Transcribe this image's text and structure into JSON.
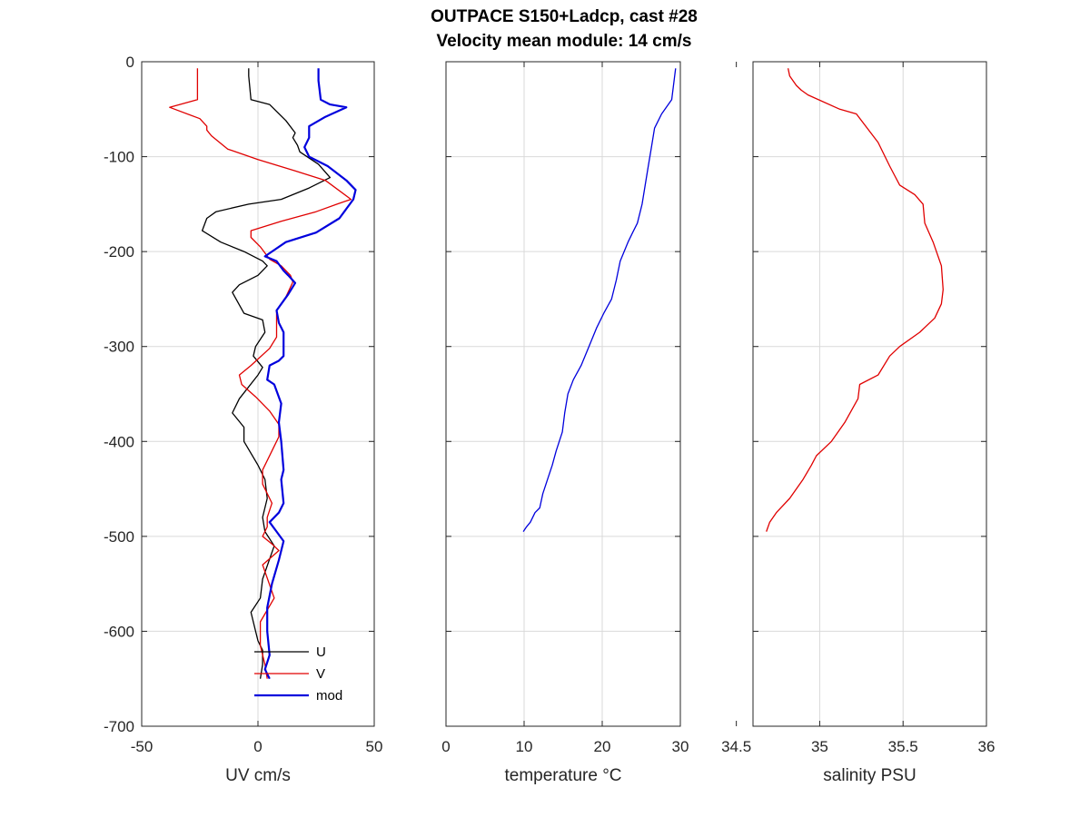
{
  "title": "OUTPACE S150+Ladcp, cast #28",
  "subtitle": "Velocity mean module:  14 cm/s",
  "colors": {
    "U": "#000000",
    "V": "#e00000",
    "mod": "#0000dd",
    "temperature": "#0000dd",
    "salinity": "#e00000",
    "grid": "#d9d9d9",
    "axis": "#262626"
  },
  "chart_data": [
    {
      "type": "line",
      "xlabel": "UV cm/s",
      "ylabel": "",
      "xlim": [
        -50,
        50
      ],
      "ylim": [
        -700,
        0
      ],
      "xticks": [
        -50,
        0,
        50
      ],
      "yticks": [
        0,
        -100,
        -200,
        -300,
        -400,
        -500,
        -600,
        -700
      ],
      "grid": true,
      "legend": "bottom-right",
      "series": [
        {
          "name": "U",
          "color": "#000000",
          "x": [
            -4,
            -4,
            -3,
            5,
            12,
            16,
            15,
            17,
            18,
            26,
            31,
            22,
            10,
            -4,
            -18,
            -22,
            -24,
            -16,
            -6,
            2,
            4,
            0,
            -8,
            -11,
            -6,
            2,
            3,
            -1,
            -2,
            2,
            0,
            -8,
            -11,
            -6,
            -6,
            0,
            3,
            4,
            2,
            3,
            7,
            2,
            1,
            -3,
            -1,
            0,
            2,
            2,
            1
          ],
          "y": [
            -7,
            -15,
            -40,
            -45,
            -62,
            -75,
            -80,
            -88,
            -95,
            -108,
            -122,
            -133,
            -145,
            -150,
            -158,
            -165,
            -178,
            -190,
            -200,
            -210,
            -215,
            -225,
            -235,
            -243,
            -265,
            -272,
            -285,
            -300,
            -310,
            -322,
            -330,
            -355,
            -370,
            -385,
            -400,
            -425,
            -440,
            -460,
            -480,
            -495,
            -510,
            -545,
            -565,
            -580,
            -600,
            -610,
            -620,
            -635,
            -650
          ]
        },
        {
          "name": "V",
          "color": "#e00000",
          "x": [
            -26,
            -26,
            -26,
            -38,
            -25,
            -22,
            -22,
            -20,
            -13,
            0,
            16,
            29,
            40,
            34,
            25,
            10,
            -3,
            -3,
            1,
            5,
            10,
            14,
            15,
            12,
            8,
            8,
            5,
            -3,
            -8,
            -7,
            -1,
            5,
            9,
            9,
            6,
            2,
            2,
            5,
            6,
            4,
            4,
            2,
            6,
            9,
            2,
            7,
            1,
            1,
            3,
            4
          ],
          "y": [
            -7,
            -20,
            -40,
            -48,
            -60,
            -68,
            -72,
            -78,
            -92,
            -103,
            -115,
            -125,
            -145,
            -150,
            -158,
            -168,
            -178,
            -185,
            -195,
            -208,
            -215,
            -225,
            -232,
            -248,
            -262,
            -290,
            -302,
            -320,
            -330,
            -340,
            -353,
            -368,
            -382,
            -395,
            -410,
            -430,
            -445,
            -460,
            -465,
            -480,
            -490,
            -500,
            -508,
            -515,
            -530,
            -565,
            -590,
            -615,
            -635,
            -650
          ]
        },
        {
          "name": "mod",
          "color": "#0000dd",
          "x": [
            26,
            26,
            27,
            31,
            38,
            29,
            22,
            22,
            20,
            22,
            30,
            38,
            42,
            41,
            35,
            25,
            12,
            6,
            3,
            8,
            11,
            13,
            16,
            13,
            8,
            9,
            11,
            11,
            11,
            9,
            5,
            4,
            7,
            10,
            9,
            10,
            11,
            10,
            11,
            9,
            5,
            8,
            11,
            9,
            6,
            4,
            4,
            5,
            3,
            5
          ],
          "y": [
            -7,
            -20,
            -40,
            -45,
            -48,
            -58,
            -68,
            -80,
            -90,
            -100,
            -110,
            -125,
            -135,
            -145,
            -165,
            -180,
            -190,
            -200,
            -205,
            -210,
            -220,
            -225,
            -233,
            -245,
            -262,
            -275,
            -285,
            -300,
            -310,
            -315,
            -320,
            -335,
            -340,
            -360,
            -380,
            -400,
            -430,
            -440,
            -465,
            -475,
            -485,
            -495,
            -505,
            -525,
            -550,
            -575,
            -600,
            -625,
            -640,
            -650
          ]
        }
      ],
      "legend_entries": [
        "U",
        "V",
        "mod"
      ]
    },
    {
      "type": "line",
      "xlabel": "temperature °C",
      "ylabel": "",
      "xlim": [
        0,
        30
      ],
      "ylim": [
        -700,
        0
      ],
      "xticks": [
        0,
        10,
        20,
        30
      ],
      "grid": true,
      "series": [
        {
          "name": "",
          "color": "#0000dd",
          "x": [
            29.4,
            29.2,
            28.9,
            27.6,
            26.7,
            26.3,
            25.9,
            25.5,
            25.1,
            24.5,
            23.9,
            23.3,
            22.3,
            21.8,
            21.2,
            20.2,
            19.3,
            18.3,
            17.3,
            16.3,
            15.6,
            15.2,
            14.9,
            14.1,
            13.6,
            13.0,
            12.4,
            12.0,
            11.4,
            10.8,
            10.3,
            9.9
          ],
          "y": [
            -7,
            -20,
            -40,
            -55,
            -70,
            -90,
            -110,
            -130,
            -150,
            -170,
            -180,
            -190,
            -210,
            -230,
            -250,
            -265,
            -280,
            -300,
            -320,
            -335,
            -350,
            -370,
            -390,
            -410,
            -425,
            -440,
            -455,
            -470,
            -475,
            -485,
            -490,
            -495
          ]
        }
      ]
    },
    {
      "type": "line",
      "xlabel": "salinity PSU",
      "ylabel": "",
      "xlim": [
        34.6,
        36
      ],
      "ylim": [
        -700,
        0
      ],
      "xticks": [
        34.5,
        35,
        35.5,
        36
      ],
      "grid": true,
      "series": [
        {
          "name": "",
          "color": "#e00000",
          "x": [
            34.81,
            34.82,
            34.86,
            34.89,
            34.93,
            35.12,
            35.22,
            35.35,
            35.42,
            35.45,
            35.48,
            35.57,
            35.62,
            35.63,
            35.68,
            35.73,
            35.74,
            35.73,
            35.69,
            35.6,
            35.48,
            35.42,
            35.35,
            35.24,
            35.23,
            35.15,
            35.07,
            34.98,
            34.95,
            34.9,
            34.82,
            34.74,
            34.7,
            34.68
          ],
          "y": [
            -7,
            -15,
            -25,
            -30,
            -35,
            -50,
            -55,
            -85,
            -110,
            -120,
            -130,
            -140,
            -150,
            -170,
            -190,
            -215,
            -240,
            -255,
            -270,
            -285,
            -300,
            -310,
            -330,
            -340,
            -355,
            -380,
            -400,
            -415,
            -425,
            -440,
            -460,
            -475,
            -485,
            -495
          ]
        }
      ]
    }
  ]
}
